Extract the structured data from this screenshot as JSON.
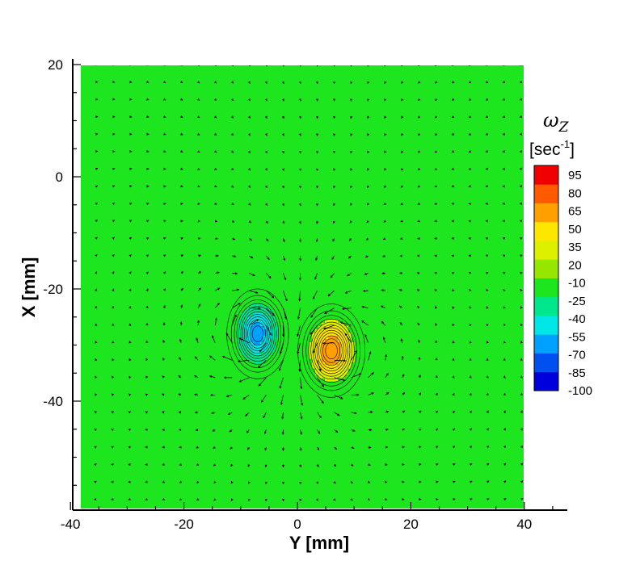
{
  "chart_data": {
    "type": "heatmap",
    "subtype": "vorticity contour with velocity vectors",
    "xlabel": "Y [mm]",
    "ylabel": "X [mm]",
    "x_ticks": [
      "-40",
      "-20",
      "0",
      "20",
      "40"
    ],
    "y_ticks": [
      "20",
      "0",
      "-20",
      "-40"
    ],
    "xlim": [
      -38.5,
      40
    ],
    "ylim": [
      -59,
      20
    ],
    "grid": false,
    "colorbar": {
      "title": "ω",
      "title_subscript": "Z",
      "unit_main": "[sec",
      "unit_sup": "-1",
      "unit_end": "]",
      "min": -100,
      "max": 95,
      "labels": [
        "95",
        "80",
        "65",
        "50",
        "35",
        "20",
        "-10",
        "-25",
        "-40",
        "-55",
        "-70",
        "-85",
        "-100"
      ],
      "position": "right"
    },
    "background_level": 0,
    "vortices": [
      {
        "name": "",
        "center": [
          -7,
          -28
        ],
        "peak": -60,
        "sigma_x": 3.4,
        "sigma_y": 5.0
      },
      {
        "name": "",
        "center": [
          6,
          -31
        ],
        "peak": 60,
        "sigma_x": 3.7,
        "sigma_y": 5.2
      }
    ],
    "vector_field": {
      "x_start": -38.5,
      "x_end": 40,
      "x_step": 3,
      "y_start": 20,
      "y_end": -59,
      "y_step": -3.1,
      "arrow_color": "#000000"
    }
  },
  "colors": {
    "background_field": "#1ee61e",
    "colormap": [
      "#0000dc",
      "#0050f0",
      "#00a0ff",
      "#00e6e6",
      "#00e68c",
      "#1ee61e",
      "#96e600",
      "#dcf000",
      "#ffe600",
      "#ffa000",
      "#ff5a00",
      "#f00000"
    ]
  }
}
